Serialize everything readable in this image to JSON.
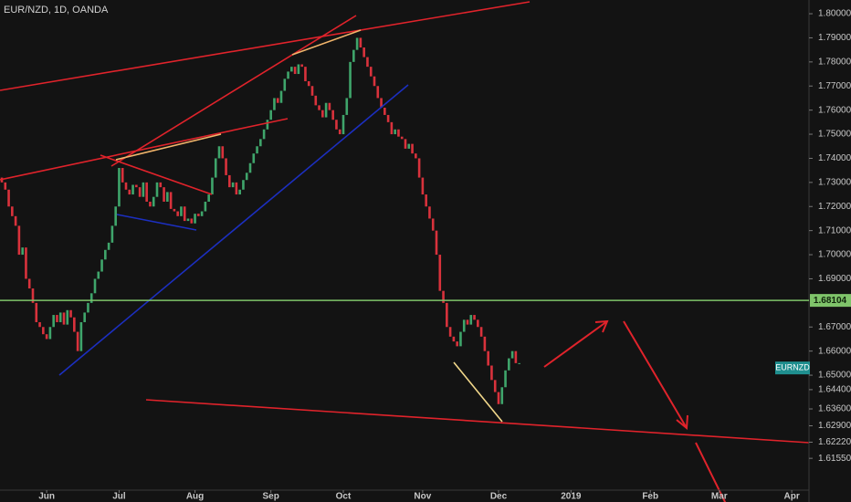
{
  "chart_data": {
    "type": "candlestick",
    "title": "EUR/NZD, 1D, OANDA",
    "open": [
      1.732,
      1.73,
      1.727,
      1.72,
      1.716,
      1.712,
      1.7,
      1.703,
      1.69,
      1.686,
      1.68,
      1.672,
      1.67,
      1.667,
      1.665,
      1.67,
      1.675,
      1.672,
      1.676,
      1.671,
      1.677,
      1.674,
      1.668,
      1.66,
      1.672,
      1.676,
      1.68,
      1.684,
      1.69,
      1.693,
      1.698,
      1.702,
      1.705,
      1.712,
      1.72,
      1.736,
      1.73,
      1.727,
      1.725,
      1.729,
      1.728,
      1.724,
      1.73,
      1.722,
      1.72,
      1.724,
      1.73,
      1.728,
      1.722,
      1.726,
      1.719,
      1.718,
      1.716,
      1.72,
      1.714,
      1.715,
      1.713,
      1.717,
      1.716,
      1.718,
      1.722,
      1.725,
      1.732,
      1.74,
      1.745,
      1.74,
      1.733,
      1.728,
      1.73,
      1.725,
      1.727,
      1.731,
      1.734,
      1.738,
      1.742,
      1.745,
      1.748,
      1.752,
      1.756,
      1.76,
      1.765,
      1.763,
      1.768,
      1.773,
      1.776,
      1.778,
      1.775,
      1.779,
      1.778,
      1.772,
      1.77,
      1.766,
      1.762,
      1.76,
      1.757,
      1.763,
      1.76,
      1.756,
      1.752,
      1.75,
      1.758,
      1.765,
      1.78,
      1.785,
      1.79,
      1.786,
      1.782,
      1.778,
      1.774,
      1.77,
      1.765,
      1.761,
      1.758,
      1.755,
      1.75,
      1.752,
      1.749,
      1.748,
      1.744,
      1.746,
      1.742,
      1.74,
      1.732,
      1.725,
      1.72,
      1.715,
      1.71,
      1.7,
      1.685,
      1.68,
      1.67,
      1.666,
      1.664,
      1.662,
      1.668,
      1.673,
      1.671,
      1.675,
      1.673,
      1.67,
      1.666,
      1.66,
      1.654,
      1.648,
      1.643,
      1.638,
      1.645,
      1.652,
      1.657,
      1.66,
      1.655
    ],
    "close": [
      1.73,
      1.727,
      1.72,
      1.716,
      1.712,
      1.7,
      1.703,
      1.69,
      1.686,
      1.68,
      1.672,
      1.67,
      1.667,
      1.665,
      1.67,
      1.675,
      1.672,
      1.676,
      1.671,
      1.677,
      1.674,
      1.668,
      1.66,
      1.672,
      1.676,
      1.68,
      1.684,
      1.69,
      1.693,
      1.698,
      1.702,
      1.705,
      1.712,
      1.72,
      1.736,
      1.73,
      1.727,
      1.725,
      1.729,
      1.728,
      1.724,
      1.73,
      1.722,
      1.72,
      1.724,
      1.73,
      1.728,
      1.722,
      1.726,
      1.719,
      1.718,
      1.716,
      1.72,
      1.714,
      1.715,
      1.713,
      1.717,
      1.716,
      1.718,
      1.722,
      1.725,
      1.732,
      1.74,
      1.745,
      1.74,
      1.733,
      1.728,
      1.73,
      1.725,
      1.727,
      1.731,
      1.734,
      1.738,
      1.742,
      1.745,
      1.748,
      1.752,
      1.756,
      1.76,
      1.765,
      1.763,
      1.768,
      1.773,
      1.776,
      1.778,
      1.775,
      1.779,
      1.778,
      1.772,
      1.77,
      1.766,
      1.762,
      1.76,
      1.757,
      1.763,
      1.76,
      1.756,
      1.752,
      1.75,
      1.758,
      1.765,
      1.78,
      1.785,
      1.79,
      1.786,
      1.782,
      1.778,
      1.774,
      1.77,
      1.765,
      1.761,
      1.758,
      1.755,
      1.75,
      1.752,
      1.749,
      1.748,
      1.744,
      1.746,
      1.742,
      1.74,
      1.732,
      1.725,
      1.72,
      1.715,
      1.71,
      1.7,
      1.685,
      1.68,
      1.67,
      1.666,
      1.664,
      1.662,
      1.668,
      1.673,
      1.671,
      1.675,
      1.673,
      1.67,
      1.666,
      1.66,
      1.654,
      1.648,
      1.643,
      1.638,
      1.645,
      1.652,
      1.657,
      1.66,
      1.655,
      1.655
    ],
    "up_color": "#3fa56b",
    "down_color": "#d9323c",
    "xlim": [
      0,
      234
    ],
    "xticks": [
      {
        "value": 13,
        "label": "Jun"
      },
      {
        "value": 34,
        "label": "Jul"
      },
      {
        "value": 56,
        "label": "Aug"
      },
      {
        "value": 78,
        "label": "Sep"
      },
      {
        "value": 99,
        "label": "Oct"
      },
      {
        "value": 122,
        "label": "Nov"
      },
      {
        "value": 144,
        "label": "Dec"
      },
      {
        "value": 165,
        "label": "2019"
      },
      {
        "value": 188,
        "label": "Feb"
      },
      {
        "value": 208,
        "label": "Mar"
      },
      {
        "value": 229,
        "label": "Apr"
      }
    ],
    "ylim": [
      1.6023,
      1.8057
    ],
    "yticks": [
      {
        "value": 1.8,
        "label": "1.80000"
      },
      {
        "value": 1.79,
        "label": "1.79000"
      },
      {
        "value": 1.78,
        "label": "1.78000"
      },
      {
        "value": 1.77,
        "label": "1.77000"
      },
      {
        "value": 1.76,
        "label": "1.76000"
      },
      {
        "value": 1.75,
        "label": "1.75000"
      },
      {
        "value": 1.74,
        "label": "1.74000"
      },
      {
        "value": 1.73,
        "label": "1.73000"
      },
      {
        "value": 1.72,
        "label": "1.72000"
      },
      {
        "value": 1.71,
        "label": "1.71000"
      },
      {
        "value": 1.7,
        "label": "1.70000"
      },
      {
        "value": 1.69,
        "label": "1.69000"
      },
      {
        "value": 1.67,
        "label": "1.67000"
      },
      {
        "value": 1.66,
        "label": "1.66000"
      },
      {
        "value": 1.65,
        "label": "1.65000"
      },
      {
        "value": 1.644,
        "label": "1.64400"
      },
      {
        "value": 1.636,
        "label": "1.63600"
      },
      {
        "value": 1.629,
        "label": "1.62900"
      },
      {
        "value": 1.6222,
        "label": "1.62220"
      },
      {
        "value": 1.6155,
        "label": "1.61550"
      }
    ],
    "grid": false,
    "hline": {
      "value": 1.68104,
      "label": "1.68104",
      "color": "#7fc46a"
    },
    "symbol_label": {
      "value": 1.653,
      "label": "EURNZD",
      "color": "#1f8f8f"
    }
  }
}
